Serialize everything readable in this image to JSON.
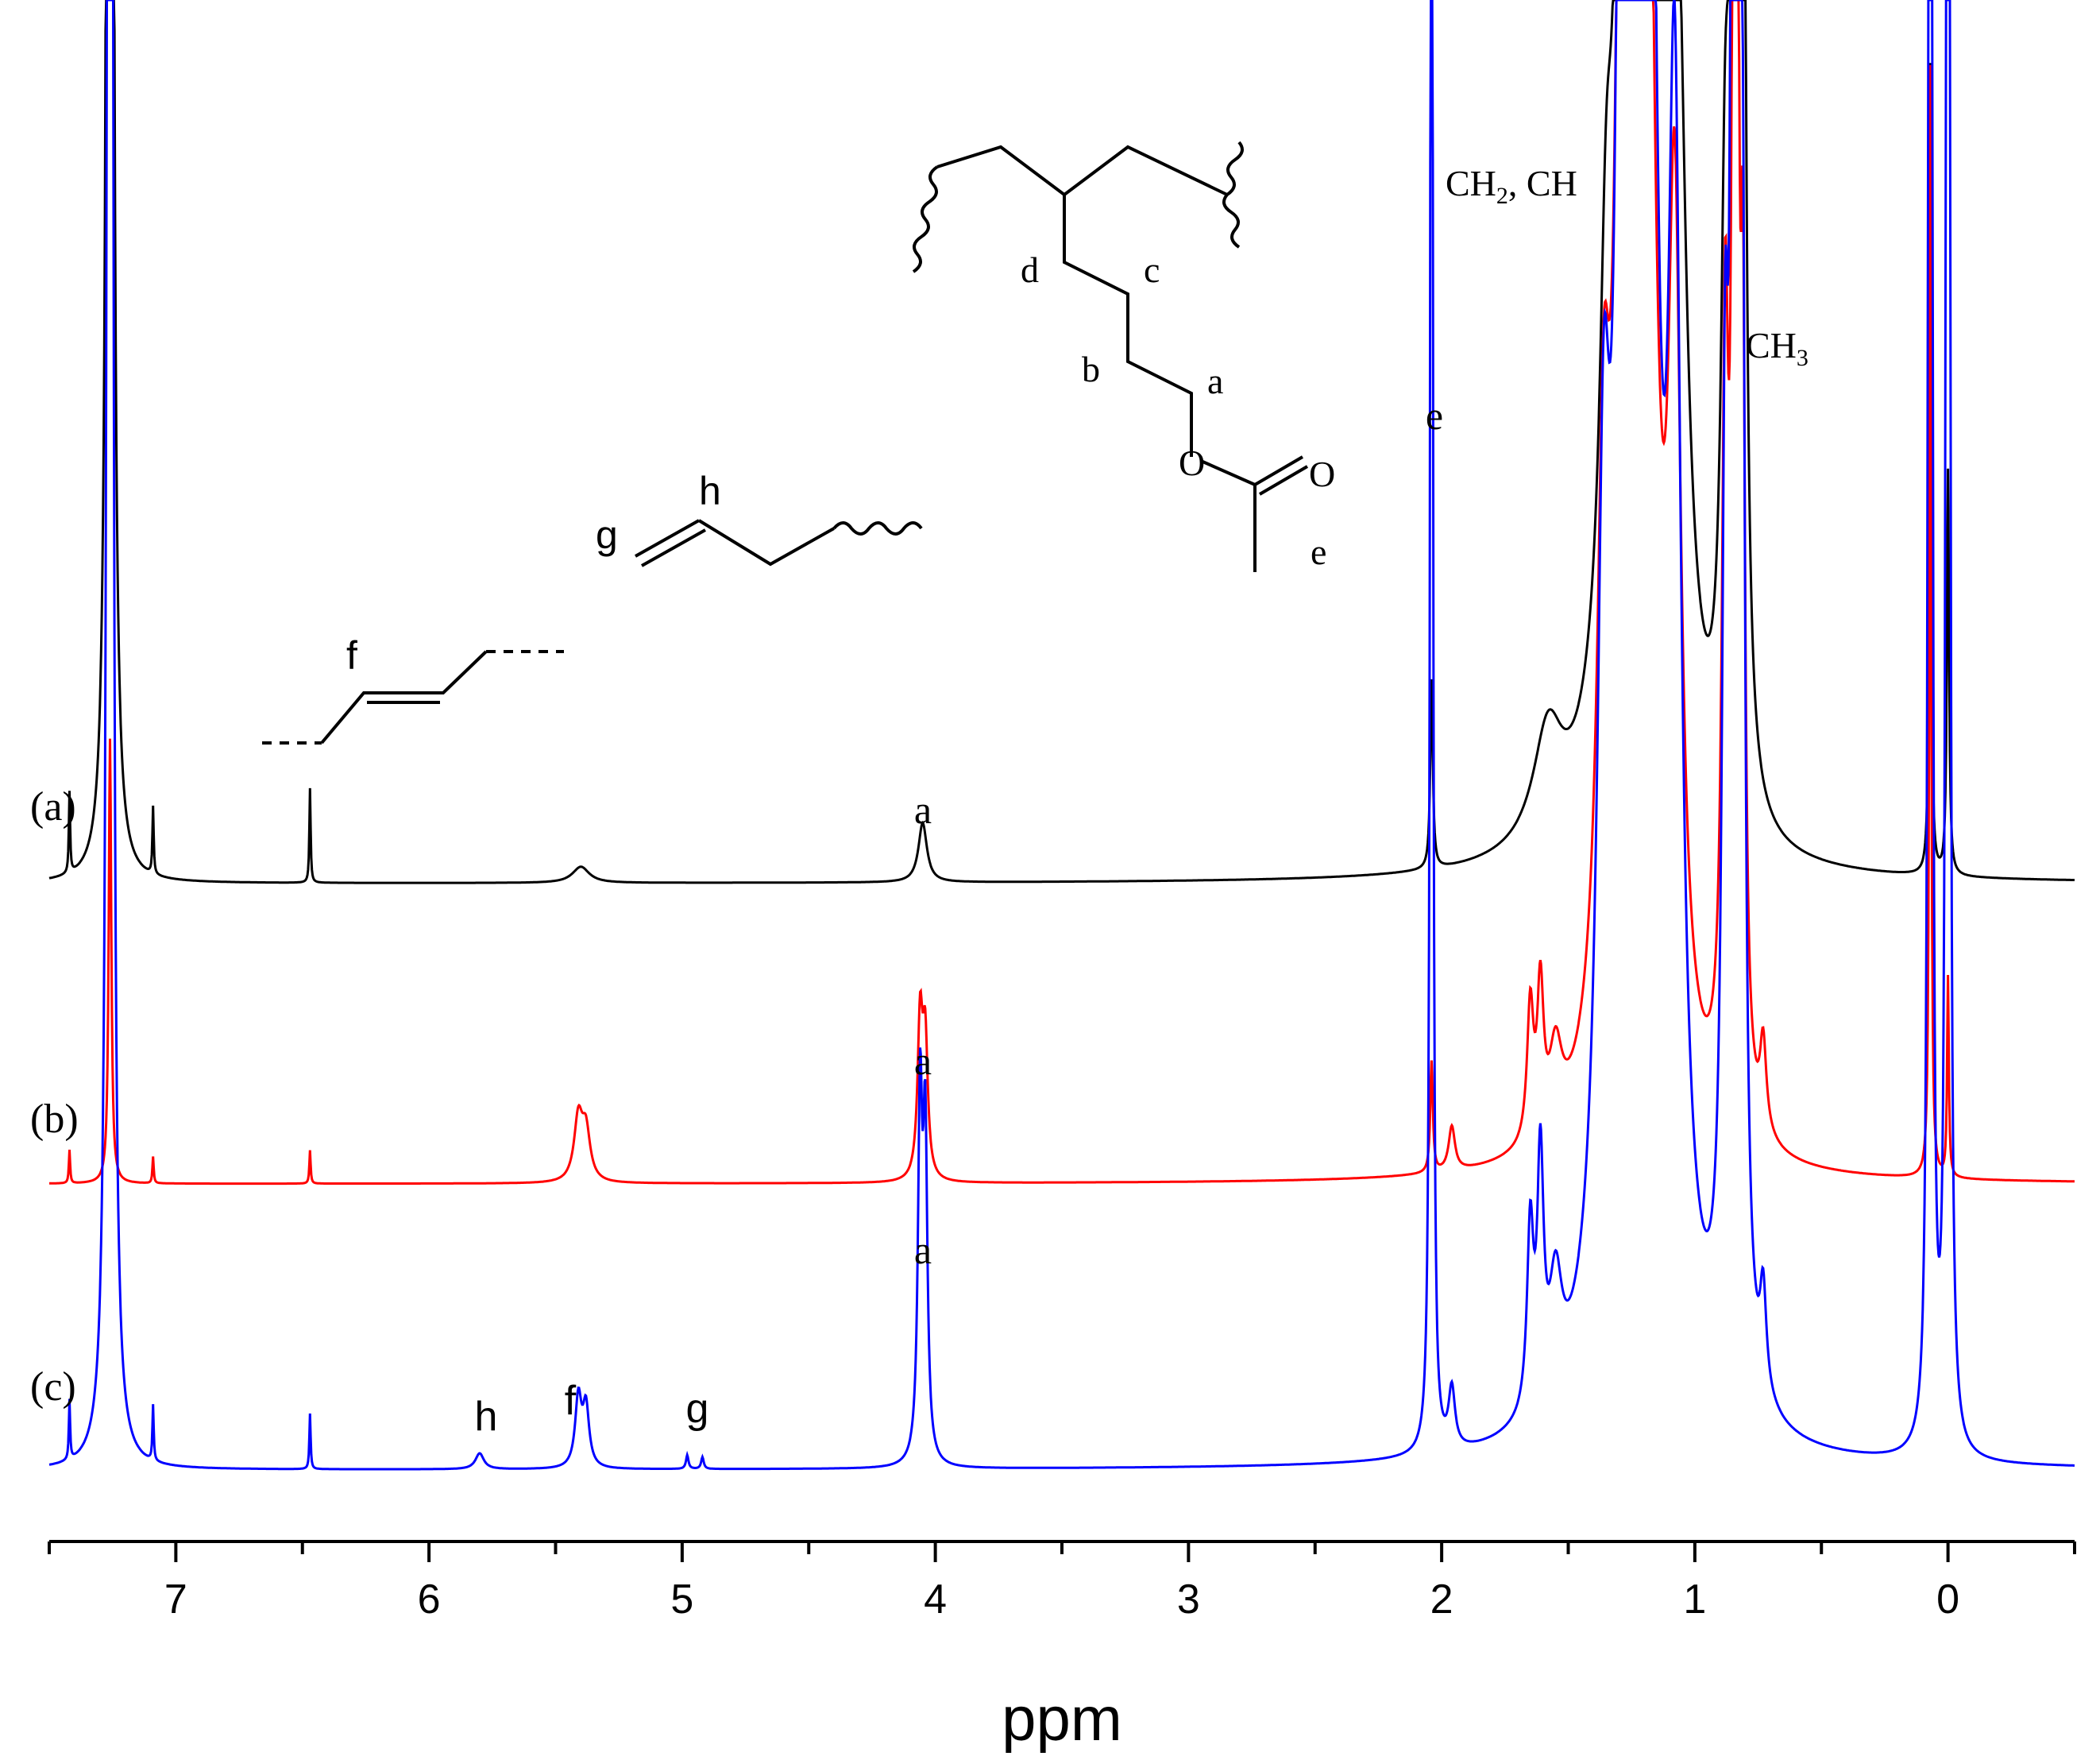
{
  "chart_data": {
    "type": "line",
    "title": "",
    "xlabel": "ppm",
    "ylabel": "",
    "x_reversed": true,
    "xlim": [
      7.5,
      -0.5
    ],
    "x_ticks": [
      "7",
      "6",
      "5",
      "4",
      "3",
      "2",
      "1",
      "0"
    ],
    "grid": false,
    "series": [
      {
        "name": "(a)",
        "color": "#000000",
        "peaks": [
          {
            "ppm": 7.26,
            "intensity": 30.0,
            "width": 0.006
          },
          {
            "ppm": 7.42,
            "intensity": 0.3,
            "width": 0.003
          },
          {
            "ppm": 7.09,
            "intensity": 0.25,
            "width": 0.003
          },
          {
            "ppm": 6.47,
            "intensity": 0.35,
            "width": 0.003
          },
          {
            "ppm": 5.4,
            "intensity": 0.06,
            "width": 0.04
          },
          {
            "ppm": 4.05,
            "intensity": 0.22,
            "width": 0.02
          },
          {
            "ppm": 2.04,
            "intensity": 0.7,
            "width": 0.006
          },
          {
            "ppm": 1.58,
            "intensity": 0.4,
            "width": 0.07
          },
          {
            "ppm": 1.35,
            "intensity": 1.2,
            "width": 0.03
          },
          {
            "ppm": 1.26,
            "intensity": 8.0,
            "width": 0.03
          },
          {
            "ppm": 1.2,
            "intensity": 7.5,
            "width": 0.05
          },
          {
            "ppm": 1.07,
            "intensity": 2.6,
            "width": 0.04
          },
          {
            "ppm": 0.88,
            "intensity": 1.8,
            "width": 0.02
          },
          {
            "ppm": 0.84,
            "intensity": 10.0,
            "width": 0.012
          },
          {
            "ppm": 0.81,
            "intensity": 4.0,
            "width": 0.012
          },
          {
            "ppm": 0.07,
            "intensity": 3.0,
            "width": 0.004
          },
          {
            "ppm": 0.0,
            "intensity": 1.5,
            "width": 0.005
          }
        ]
      },
      {
        "name": "(b)",
        "color": "#ff0000",
        "peaks": [
          {
            "ppm": 7.26,
            "intensity": 2.0,
            "width": 0.006
          },
          {
            "ppm": 7.42,
            "intensity": 0.15,
            "width": 0.003
          },
          {
            "ppm": 7.09,
            "intensity": 0.12,
            "width": 0.003
          },
          {
            "ppm": 6.47,
            "intensity": 0.15,
            "width": 0.003
          },
          {
            "ppm": 5.41,
            "intensity": 0.28,
            "width": 0.02
          },
          {
            "ppm": 5.38,
            "intensity": 0.22,
            "width": 0.02
          },
          {
            "ppm": 4.06,
            "intensity": 0.7,
            "width": 0.012
          },
          {
            "ppm": 4.04,
            "intensity": 0.6,
            "width": 0.012
          },
          {
            "ppm": 2.04,
            "intensity": 0.5,
            "width": 0.006
          },
          {
            "ppm": 1.96,
            "intensity": 0.2,
            "width": 0.015
          },
          {
            "ppm": 1.65,
            "intensity": 0.6,
            "width": 0.015
          },
          {
            "ppm": 1.61,
            "intensity": 0.65,
            "width": 0.015
          },
          {
            "ppm": 1.55,
            "intensity": 0.35,
            "width": 0.03
          },
          {
            "ppm": 1.36,
            "intensity": 2.3,
            "width": 0.03
          },
          {
            "ppm": 1.27,
            "intensity": 12.0,
            "width": 0.025
          },
          {
            "ppm": 1.21,
            "intensity": 10.0,
            "width": 0.04
          },
          {
            "ppm": 1.08,
            "intensity": 3.6,
            "width": 0.03
          },
          {
            "ppm": 0.88,
            "intensity": 3.2,
            "width": 0.015
          },
          {
            "ppm": 0.84,
            "intensity": 12.0,
            "width": 0.01
          },
          {
            "ppm": 0.81,
            "intensity": 3.0,
            "width": 0.01
          },
          {
            "ppm": 0.73,
            "intensity": 0.4,
            "width": 0.015
          },
          {
            "ppm": 0.07,
            "intensity": 5.0,
            "width": 0.004
          },
          {
            "ppm": 0.0,
            "intensity": 0.9,
            "width": 0.004
          }
        ]
      },
      {
        "name": "(c)",
        "color": "#0000ff",
        "peaks": [
          {
            "ppm": 7.26,
            "intensity": 40.0,
            "width": 0.006
          },
          {
            "ppm": 7.42,
            "intensity": 0.3,
            "width": 0.003
          },
          {
            "ppm": 7.09,
            "intensity": 0.28,
            "width": 0.003
          },
          {
            "ppm": 6.47,
            "intensity": 0.28,
            "width": 0.003
          },
          {
            "ppm": 5.8,
            "intensity": 0.08,
            "width": 0.02
          },
          {
            "ppm": 5.41,
            "intensity": 0.35,
            "width": 0.015
          },
          {
            "ppm": 5.38,
            "intensity": 0.3,
            "width": 0.015
          },
          {
            "ppm": 4.98,
            "intensity": 0.07,
            "width": 0.006
          },
          {
            "ppm": 4.92,
            "intensity": 0.06,
            "width": 0.006
          },
          {
            "ppm": 4.06,
            "intensity": 1.8,
            "width": 0.01
          },
          {
            "ppm": 4.04,
            "intensity": 1.6,
            "width": 0.01
          },
          {
            "ppm": 2.04,
            "intensity": 13.0,
            "width": 0.005
          },
          {
            "ppm": 1.96,
            "intensity": 0.3,
            "width": 0.015
          },
          {
            "ppm": 1.65,
            "intensity": 0.9,
            "width": 0.015
          },
          {
            "ppm": 1.61,
            "intensity": 1.2,
            "width": 0.015
          },
          {
            "ppm": 1.55,
            "intensity": 0.55,
            "width": 0.03
          },
          {
            "ppm": 1.36,
            "intensity": 3.5,
            "width": 0.03
          },
          {
            "ppm": 1.27,
            "intensity": 20.0,
            "width": 0.02
          },
          {
            "ppm": 1.21,
            "intensity": 18.0,
            "width": 0.04
          },
          {
            "ppm": 1.08,
            "intensity": 5.5,
            "width": 0.03
          },
          {
            "ppm": 0.88,
            "intensity": 4.0,
            "width": 0.015
          },
          {
            "ppm": 0.84,
            "intensity": 40.0,
            "width": 0.008
          },
          {
            "ppm": 0.81,
            "intensity": 4.0,
            "width": 0.01
          },
          {
            "ppm": 0.73,
            "intensity": 0.5,
            "width": 0.015
          },
          {
            "ppm": 0.07,
            "intensity": 40.0,
            "width": 0.004
          },
          {
            "ppm": 0.0,
            "intensity": 40.0,
            "width": 0.004
          }
        ]
      }
    ],
    "annotations": [
      {
        "text": "a",
        "series": "(a)",
        "ppm": 4.05
      },
      {
        "text": "a",
        "series": "(b)",
        "ppm": 4.05
      },
      {
        "text": "a",
        "series": "(c)",
        "ppm": 4.05
      },
      {
        "text": "h",
        "series": "(c)",
        "ppm": 5.8
      },
      {
        "text": "f",
        "series": "(c)",
        "ppm": 5.4
      },
      {
        "text": "g",
        "series": "(c)",
        "ppm": 4.95
      },
      {
        "text": "e",
        "series": "(c)",
        "ppm": 2.04
      }
    ],
    "region_labels": {
      "ch2_ch_base": "CH",
      "ch2_ch_sub": "2",
      "ch2_ch_tail": ", CH",
      "ch3_base": "CH",
      "ch3_sub": "3"
    },
    "structure_labels": {
      "d": "d",
      "c": "c",
      "b": "b",
      "a": "a",
      "o1": "O",
      "o2": "O",
      "e": "e",
      "g": "g",
      "h": "h",
      "f": "f"
    }
  }
}
